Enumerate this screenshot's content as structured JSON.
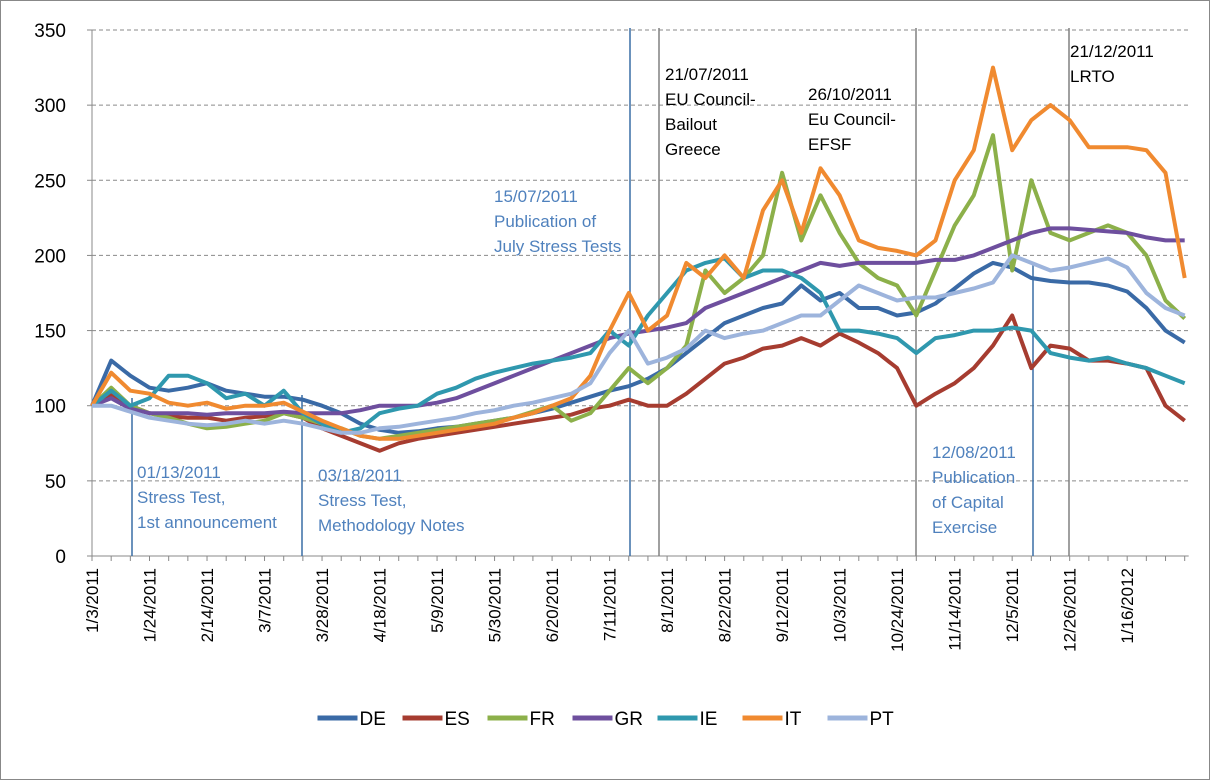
{
  "chart_data": {
    "type": "line",
    "categories": [
      "1/3/2011",
      null,
      null,
      "1/24/2011",
      null,
      null,
      "2/14/2011",
      null,
      null,
      "3/7/2011",
      null,
      null,
      "3/28/2011",
      null,
      null,
      "4/18/2011",
      null,
      null,
      "5/9/2011",
      null,
      null,
      "5/30/2011",
      null,
      null,
      "6/20/2011",
      null,
      null,
      "7/11/2011",
      null,
      null,
      "8/1/2011",
      null,
      null,
      "8/22/2011",
      null,
      null,
      "9/12/2011",
      null,
      null,
      "10/3/2011",
      null,
      null,
      "10/24/2011",
      null,
      null,
      "11/14/2011",
      null,
      null,
      "12/5/2011",
      null,
      null,
      "12/26/2011",
      null,
      null,
      "1/16/2012",
      null,
      null,
      null
    ],
    "series": [
      {
        "name": "DE",
        "color": "#3a6aa6",
        "values": [
          100,
          130,
          120,
          112,
          110,
          112,
          115,
          110,
          108,
          106,
          106,
          104,
          100,
          95,
          88,
          84,
          82,
          83,
          85,
          86,
          88,
          90,
          92,
          95,
          98,
          102,
          106,
          110,
          113,
          118,
          125,
          135,
          145,
          155,
          160,
          165,
          168,
          180,
          170,
          175,
          165,
          165,
          160,
          162,
          168,
          178,
          188,
          195,
          192,
          185,
          183,
          182,
          182,
          180,
          176,
          165,
          150,
          142
        ]
      },
      {
        "name": "ES",
        "color": "#a63c30",
        "values": [
          100,
          108,
          100,
          95,
          93,
          92,
          92,
          90,
          92,
          93,
          95,
          92,
          85,
          80,
          75,
          70,
          75,
          78,
          80,
          82,
          84,
          86,
          88,
          90,
          92,
          94,
          98,
          100,
          104,
          100,
          100,
          108,
          118,
          128,
          132,
          138,
          140,
          145,
          140,
          148,
          142,
          135,
          125,
          100,
          108,
          115,
          125,
          140,
          160,
          125,
          140,
          138,
          130,
          130,
          128,
          125,
          100,
          90
        ]
      },
      {
        "name": "FR",
        "color": "#8cb04a",
        "values": [
          100,
          112,
          100,
          95,
          92,
          88,
          85,
          86,
          88,
          90,
          95,
          92,
          88,
          85,
          80,
          78,
          80,
          82,
          84,
          86,
          88,
          90,
          92,
          96,
          100,
          90,
          95,
          110,
          125,
          115,
          125,
          140,
          190,
          175,
          185,
          200,
          255,
          210,
          240,
          215,
          195,
          185,
          180,
          160,
          190,
          220,
          240,
          280,
          190,
          250,
          215,
          210,
          215,
          220,
          215,
          200,
          170,
          158
        ]
      },
      {
        "name": "GR",
        "color": "#6e4f9e",
        "values": [
          100,
          105,
          98,
          95,
          95,
          95,
          94,
          95,
          95,
          95,
          96,
          95,
          95,
          95,
          97,
          100,
          100,
          100,
          102,
          105,
          110,
          115,
          120,
          125,
          130,
          135,
          140,
          145,
          148,
          150,
          152,
          155,
          165,
          170,
          175,
          180,
          185,
          190,
          195,
          193,
          195,
          195,
          195,
          195,
          197,
          197,
          200,
          205,
          210,
          215,
          218,
          218,
          217,
          216,
          215,
          212,
          210,
          210
        ]
      },
      {
        "name": "IE",
        "color": "#2f98ae",
        "values": [
          100,
          110,
          100,
          105,
          120,
          120,
          115,
          105,
          108,
          100,
          110,
          95,
          88,
          82,
          85,
          95,
          98,
          100,
          108,
          112,
          118,
          122,
          125,
          128,
          130,
          132,
          135,
          150,
          140,
          160,
          175,
          190,
          195,
          198,
          185,
          190,
          190,
          185,
          175,
          150,
          150,
          148,
          145,
          135,
          145,
          147,
          150,
          150,
          152,
          150,
          135,
          132,
          130,
          132,
          128,
          125,
          120,
          115
        ]
      },
      {
        "name": "IT",
        "color": "#f08a30",
        "values": [
          100,
          122,
          110,
          108,
          102,
          100,
          102,
          98,
          100,
          100,
          102,
          96,
          90,
          85,
          80,
          78,
          78,
          80,
          82,
          84,
          86,
          88,
          92,
          95,
          100,
          105,
          120,
          150,
          175,
          150,
          160,
          195,
          185,
          200,
          185,
          230,
          250,
          215,
          258,
          240,
          210,
          205,
          203,
          200,
          210,
          250,
          270,
          325,
          270,
          290,
          300,
          290,
          272,
          272,
          272,
          270,
          255,
          185
        ]
      },
      {
        "name": "PT",
        "color": "#9db4dc",
        "values": [
          100,
          100,
          96,
          92,
          90,
          88,
          87,
          88,
          90,
          88,
          90,
          88,
          85,
          82,
          82,
          85,
          86,
          88,
          90,
          92,
          95,
          97,
          100,
          102,
          105,
          108,
          115,
          135,
          150,
          128,
          132,
          138,
          150,
          145,
          148,
          150,
          155,
          160,
          160,
          170,
          180,
          175,
          170,
          172,
          172,
          175,
          178,
          182,
          200,
          195,
          190,
          192,
          195,
          198,
          192,
          175,
          165,
          160
        ]
      }
    ],
    "ylim": [
      0,
      350
    ],
    "yticks": [
      0,
      50,
      100,
      150,
      200,
      250,
      300,
      350
    ],
    "grid": true,
    "legend": "bottom",
    "annotations": [
      {
        "lines": [
          "01/13/2011",
          "Stress Test,",
          "1st announcement"
        ],
        "color": "#4f81bd",
        "line_color": "#3a6ea5"
      },
      {
        "lines": [
          "03/18/2011",
          "Stress Test,",
          "Methodology Notes"
        ],
        "color": "#4f81bd",
        "line_color": "#3a6ea5"
      },
      {
        "lines": [
          "15/07/2011",
          "Publication of",
          "July Stress Tests"
        ],
        "color": "#4f81bd",
        "line_color": "#3a6ea5"
      },
      {
        "lines": [
          "21/07/2011",
          "EU Council-",
          "Bailout",
          "Greece"
        ],
        "color": "#000000",
        "line_color": "#808080"
      },
      {
        "lines": [
          "26/10/2011",
          "Eu Council-",
          "EFSF"
        ],
        "color": "#000000",
        "line_color": "#808080"
      },
      {
        "lines": [
          "12/08/2011",
          "Publication",
          "of Capital",
          "Exercise"
        ],
        "color": "#4f81bd",
        "line_color": "#3a6ea5"
      },
      {
        "lines": [
          "21/12/2011",
          "LRTO"
        ],
        "color": "#000000",
        "line_color": "#808080"
      }
    ]
  }
}
